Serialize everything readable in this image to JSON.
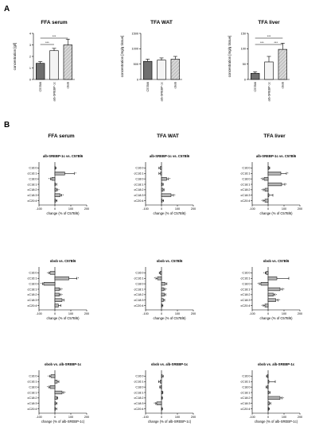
{
  "panel_letters": [
    "A",
    "B"
  ],
  "chart_data": [
    {
      "type": "bar",
      "title": "FFA serum",
      "ylabel": "concentration [g/l]",
      "categories": [
        "C57Bl6",
        "alb-SREBP-1c",
        "obob"
      ],
      "values": [
        1.4,
        2.5,
        3.0
      ],
      "errors": [
        0.15,
        0.2,
        0.5
      ],
      "ylim": [
        0,
        4
      ],
      "yticks": [
        0,
        1,
        2,
        3,
        4
      ],
      "significance": [
        {
          "pair": [
            "C57Bl6",
            "alb-SREBP-1c"
          ],
          "label": "***"
        },
        {
          "pair": [
            "C57Bl6",
            "obob"
          ],
          "label": "***"
        }
      ]
    },
    {
      "type": "bar",
      "title": "TFA WAT",
      "ylabel": "concentration [mg/g tissue]",
      "categories": [
        "C57Bl6",
        "alb-SREBP-1c",
        "obob"
      ],
      "values": [
        590,
        630,
        660
      ],
      "errors": [
        70,
        70,
        90
      ],
      "ylim": [
        0,
        1500
      ],
      "yticks": [
        0,
        500,
        1000,
        1500
      ],
      "significance": []
    },
    {
      "type": "bar",
      "title": "TFA liver",
      "ylabel": "concentration [mg/g tissue]",
      "categories": [
        "C57Bl6",
        "alb-SREBP-1c",
        "obob"
      ],
      "values": [
        20,
        57,
        98
      ],
      "errors": [
        5,
        18,
        20
      ],
      "ylim": [
        0,
        150
      ],
      "yticks": [
        0,
        50,
        100,
        150
      ],
      "significance": [
        {
          "pair": [
            "C57Bl6",
            "alb-SREBP-1c"
          ],
          "label": "***"
        },
        {
          "pair": [
            "alb-SREBP-1c",
            "obob"
          ],
          "label": "***"
        },
        {
          "pair": [
            "C57Bl6",
            "obob"
          ],
          "label": "***"
        }
      ]
    },
    {
      "type": "bar",
      "orientation": "horizontal",
      "column_title": "FFA serum",
      "subtitle": "alb-SREBP-1c vs. C57Bl6",
      "xlabel": "change (% of C57Bl6)",
      "categories": [
        "C16:0",
        "cC16:1",
        "C18:0",
        "cC18:1",
        "cC18:2",
        "cC18:3",
        "cC20:4"
      ],
      "values": [
        2,
        62,
        -20,
        3,
        10,
        33,
        5
      ],
      "errors": [
        5,
        60,
        8,
        8,
        6,
        10,
        8
      ],
      "stars": [
        "",
        "*",
        "*",
        "",
        "*",
        "*",
        ""
      ],
      "xlim": [
        -100,
        200
      ],
      "xticks": [
        -100,
        0,
        100,
        200
      ]
    },
    {
      "type": "bar",
      "orientation": "horizontal",
      "column_title": "TFA WAT",
      "subtitle": "alb-SREBP-1c vs. C57Bl6",
      "xlabel": "change (% of C57Bl6)",
      "categories": [
        "C16:0",
        "cC16:1",
        "C18:0",
        "cC18:1",
        "cC18:2",
        "cC18:3",
        "cC20:4"
      ],
      "values": [
        -8,
        -6,
        32,
        5,
        10,
        60,
        5
      ],
      "errors": [
        8,
        10,
        12,
        6,
        6,
        15,
        8
      ],
      "stars": [
        "",
        "",
        "*",
        "",
        "",
        "*",
        ""
      ],
      "xlim": [
        -100,
        200
      ],
      "xticks": [
        -100,
        0,
        100,
        200
      ]
    },
    {
      "type": "bar",
      "orientation": "horizontal",
      "column_title": "TFA liver",
      "subtitle": "alb-SREBP-1c vs. C57Bl6",
      "xlabel": "change (% of C57Bl6)",
      "categories": [
        "C16:0",
        "cC16:1",
        "C18:0",
        "cC18:1",
        "cC18:2",
        "cC18:3",
        "cC20:4"
      ],
      "values": [
        5,
        80,
        -25,
        85,
        -20,
        5,
        -20
      ],
      "errors": [
        5,
        35,
        10,
        20,
        10,
        25,
        10
      ],
      "stars": [
        "",
        "*",
        "*",
        "*",
        "*",
        "",
        "*"
      ],
      "xlim": [
        -100,
        200
      ],
      "xticks": [
        -100,
        0,
        100,
        200
      ]
    },
    {
      "type": "bar",
      "orientation": "horizontal",
      "subtitle": "obob vs. C57Bl6",
      "xlabel": "change (% of C57Bl6)",
      "categories": [
        "C16:0",
        "cC16:1",
        "C18:0",
        "cC18:1",
        "cC18:2",
        "cC18:3",
        "cC20:4"
      ],
      "values": [
        -30,
        88,
        -70,
        28,
        28,
        45,
        22
      ],
      "errors": [
        8,
        50,
        8,
        8,
        8,
        12,
        15
      ],
      "stars": [
        "*",
        "*",
        "*",
        "*",
        "*",
        "",
        ""
      ],
      "xlim": [
        -100,
        200
      ],
      "xticks": [
        -100,
        0,
        100,
        200
      ]
    },
    {
      "type": "bar",
      "orientation": "horizontal",
      "subtitle": "obob vs. C57Bl6",
      "xlabel": "change (% of C57Bl6)",
      "categories": [
        "C16:0",
        "cC16:1",
        "C18:0",
        "cC18:1",
        "cC18:2",
        "cC18:3",
        "cC20:4"
      ],
      "values": [
        -8,
        -25,
        22,
        15,
        18,
        12,
        3
      ],
      "errors": [
        6,
        10,
        12,
        6,
        8,
        8,
        6
      ],
      "stars": [
        "",
        "*",
        "",
        "*",
        "",
        "",
        ""
      ],
      "xlim": [
        -100,
        200
      ],
      "xticks": [
        -100,
        0,
        100,
        200
      ]
    },
    {
      "type": "bar",
      "orientation": "horizontal",
      "subtitle": "obob vs. C57Bl6",
      "xlabel": "change (% of C57Bl6)",
      "categories": [
        "C16:0",
        "cC16:1",
        "C18:0",
        "cC18:1",
        "cC18:2",
        "cC18:3",
        "cC20:4"
      ],
      "values": [
        -12,
        55,
        -45,
        75,
        33,
        48,
        -20
      ],
      "errors": [
        6,
        75,
        10,
        15,
        10,
        15,
        10
      ],
      "stars": [
        "*",
        "",
        "*",
        "*",
        "*",
        "*",
        "*"
      ],
      "xlim": [
        -100,
        200
      ],
      "xticks": [
        -100,
        0,
        100,
        200
      ]
    },
    {
      "type": "bar",
      "orientation": "horizontal",
      "subtitle": "obob vs. alb-SREBP-1c",
      "xlabel": "change (% of alb-SREBP-1c)",
      "categories": [
        "C16:0",
        "cC16:1",
        "C18:0",
        "cC18:1",
        "cC18:2",
        "cC18:3",
        "cC20:4"
      ],
      "values": [
        -25,
        15,
        -30,
        45,
        12,
        5,
        3
      ],
      "errors": [
        8,
        10,
        8,
        10,
        6,
        8,
        8
      ],
      "stars": [
        "*",
        "",
        "*",
        "*",
        "",
        "",
        ""
      ],
      "xlim": [
        -100,
        200
      ],
      "xticks": [
        -100,
        0,
        100,
        200
      ]
    },
    {
      "type": "bar",
      "orientation": "horizontal",
      "subtitle": "obob vs. alb-SREBP-1c",
      "xlabel": "change (% of alb-SREBP-1c)",
      "categories": [
        "C16:0",
        "cC16:1",
        "C18:0",
        "cC18:1",
        "cC18:2",
        "cC18:3",
        "cC20:4"
      ],
      "values": [
        5,
        -8,
        -5,
        5,
        2,
        -30,
        2
      ],
      "errors": [
        6,
        10,
        6,
        4,
        4,
        6,
        4
      ],
      "stars": [
        "",
        "",
        "",
        "",
        "",
        "*",
        ""
      ],
      "xlim": [
        -100,
        200
      ],
      "xticks": [
        -100,
        0,
        100,
        200
      ]
    },
    {
      "type": "bar",
      "orientation": "horizontal",
      "subtitle": "obob vs. alb-SREBP-1c",
      "xlabel": "change (% of alb-SREBP-1c)",
      "categories": [
        "C16:0",
        "cC16:1",
        "C18:0",
        "cC18:1",
        "cC18:2",
        "cC18:3",
        "cC20:4"
      ],
      "values": [
        -5,
        5,
        -5,
        5,
        75,
        8,
        3
      ],
      "errors": [
        5,
        40,
        8,
        8,
        12,
        8,
        5
      ],
      "stars": [
        "",
        "",
        "",
        "",
        "*",
        "",
        ""
      ],
      "xlim": [
        -100,
        200
      ],
      "xticks": [
        -100,
        0,
        100,
        200
      ]
    }
  ],
  "colors": {
    "C57Bl6": "#6f6f6f",
    "alb-SREBP-1c": "#f4f4f4",
    "obob": "#bdbdbd",
    "hbar": "#b5b5b5",
    "axis": "#000000"
  }
}
